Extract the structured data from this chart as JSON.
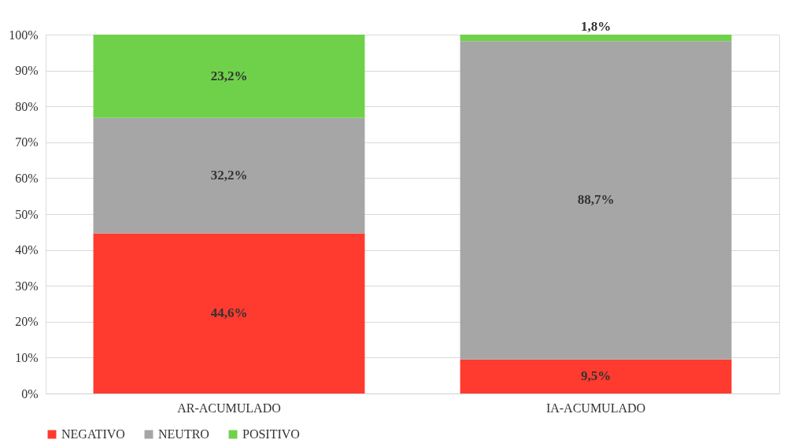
{
  "chart_data": {
    "type": "bar",
    "stacked": true,
    "categories": [
      "AR-ACUMULADO",
      "IA-ACUMULADO"
    ],
    "series": [
      {
        "name": "NEGATIVO",
        "color": "#ff3b2f",
        "values": [
          44.6,
          9.5
        ],
        "value_labels": [
          "44,6%",
          "9,5%"
        ]
      },
      {
        "name": "NEUTRO",
        "color": "#a6a6a6",
        "values": [
          32.2,
          88.7
        ],
        "value_labels": [
          "32,2%",
          "88,7%"
        ]
      },
      {
        "name": "POSITIVO",
        "color": "#6fd14a",
        "values": [
          23.2,
          1.8
        ],
        "value_labels": [
          "23,2%",
          "1,8%"
        ]
      }
    ],
    "ylim": [
      0,
      100
    ],
    "yticks": [
      {
        "value": 0,
        "label": "0%"
      },
      {
        "value": 10,
        "label": "10%"
      },
      {
        "value": 20,
        "label": "20%"
      },
      {
        "value": 30,
        "label": "30%"
      },
      {
        "value": 40,
        "label": "40%"
      },
      {
        "value": 50,
        "label": "50%"
      },
      {
        "value": 60,
        "label": "60%"
      },
      {
        "value": 70,
        "label": "70%"
      },
      {
        "value": 80,
        "label": "80%"
      },
      {
        "value": 90,
        "label": "90%"
      },
      {
        "value": 100,
        "label": "100%"
      }
    ],
    "grid": "y",
    "legend": "bottom"
  }
}
